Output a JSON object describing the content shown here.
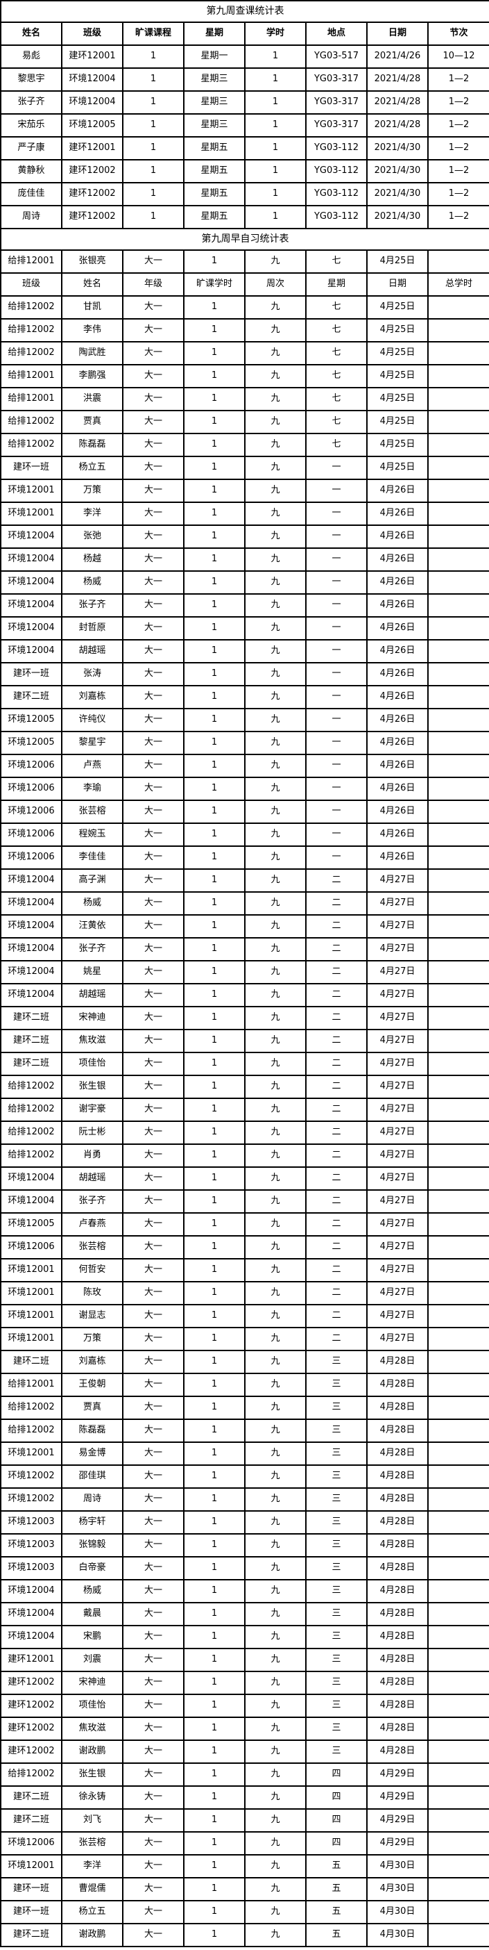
{
  "colors": {
    "border": "#000000",
    "background": "#ffffff",
    "text": "#000000"
  },
  "table1": {
    "title": "第九周查课统计表",
    "headers": [
      "姓名",
      "班级",
      "旷课课程",
      "星期",
      "学时",
      "地点",
      "日期",
      "节次"
    ],
    "rows": [
      [
        "易彪",
        "建环12001",
        "1",
        "星期一",
        "1",
        "YG03-517",
        "2021/4/26",
        "10—12"
      ],
      [
        "黎思宇",
        "环境12004",
        "1",
        "星期三",
        "1",
        "YG03-317",
        "2021/4/28",
        "1—2"
      ],
      [
        "张子齐",
        "环境12004",
        "1",
        "星期三",
        "1",
        "YG03-317",
        "2021/4/28",
        "1—2"
      ],
      [
        "宋茄乐",
        "环境12005",
        "1",
        "星期三",
        "1",
        "YG03-317",
        "2021/4/28",
        "1—2"
      ],
      [
        "严子康",
        "建环12001",
        "1",
        "星期五",
        "1",
        "YG03-112",
        "2021/4/30",
        "1—2"
      ],
      [
        "黄静秋",
        "建环12002",
        "1",
        "星期五",
        "1",
        "YG03-112",
        "2021/4/30",
        "1—2"
      ],
      [
        "庞佳佳",
        "建环12002",
        "1",
        "星期五",
        "1",
        "YG03-112",
        "2021/4/30",
        "1—2"
      ],
      [
        "周诗",
        "建环12002",
        "1",
        "星期五",
        "1",
        "YG03-112",
        "2021/4/30",
        "1—2"
      ]
    ]
  },
  "table2": {
    "title": "第九周早自习统计表",
    "pre_rows": [
      [
        "给排12001",
        "张银亮",
        "大一",
        "1",
        "九",
        "七",
        "4月25日",
        ""
      ]
    ],
    "headers": [
      "班级",
      "姓名",
      "年级",
      "旷课学时",
      "周次",
      "星期",
      "日期",
      "总学时"
    ],
    "rows": [
      [
        "给排12002",
        "甘凯",
        "大一",
        "1",
        "九",
        "七",
        "4月25日",
        ""
      ],
      [
        "给排12002",
        "李伟",
        "大一",
        "1",
        "九",
        "七",
        "4月25日",
        ""
      ],
      [
        "给排12002",
        "陶武胜",
        "大一",
        "1",
        "九",
        "七",
        "4月25日",
        ""
      ],
      [
        "给排12001",
        "李鹏强",
        "大一",
        "1",
        "九",
        "七",
        "4月25日",
        ""
      ],
      [
        "给排12001",
        "洪震",
        "大一",
        "1",
        "九",
        "七",
        "4月25日",
        ""
      ],
      [
        "给排12002",
        "贾真",
        "大一",
        "1",
        "九",
        "七",
        "4月25日",
        ""
      ],
      [
        "给排12002",
        "陈磊磊",
        "大一",
        "1",
        "九",
        "七",
        "4月25日",
        ""
      ],
      [
        "建环一班",
        "杨立五",
        "大一",
        "1",
        "九",
        "一",
        "4月25日",
        ""
      ],
      [
        "环境12001",
        "万策",
        "大一",
        "1",
        "九",
        "一",
        "4月26日",
        ""
      ],
      [
        "环境12001",
        "李洋",
        "大一",
        "1",
        "九",
        "一",
        "4月26日",
        ""
      ],
      [
        "环境12004",
        "张弛",
        "大一",
        "1",
        "九",
        "一",
        "4月26日",
        ""
      ],
      [
        "环境12004",
        "杨越",
        "大一",
        "1",
        "九",
        "一",
        "4月26日",
        ""
      ],
      [
        "环境12004",
        "杨威",
        "大一",
        "1",
        "九",
        "一",
        "4月26日",
        ""
      ],
      [
        "环境12004",
        "张子齐",
        "大一",
        "1",
        "九",
        "一",
        "4月26日",
        ""
      ],
      [
        "环境12004",
        "封哲原",
        "大一",
        "1",
        "九",
        "一",
        "4月26日",
        ""
      ],
      [
        "环境12004",
        "胡越瑶",
        "大一",
        "1",
        "九",
        "一",
        "4月26日",
        ""
      ],
      [
        "建环一班",
        "张涛",
        "大一",
        "1",
        "九",
        "一",
        "4月26日",
        ""
      ],
      [
        "建环二班",
        "刘嘉栋",
        "大一",
        "1",
        "九",
        "一",
        "4月26日",
        ""
      ],
      [
        "环境12005",
        "许纯仪",
        "大一",
        "1",
        "九",
        "一",
        "4月26日",
        ""
      ],
      [
        "环境12005",
        "黎星宇",
        "大一",
        "1",
        "九",
        "一",
        "4月26日",
        ""
      ],
      [
        "环境12006",
        "卢燕",
        "大一",
        "1",
        "九",
        "一",
        "4月26日",
        ""
      ],
      [
        "环境12006",
        "李瑜",
        "大一",
        "1",
        "九",
        "一",
        "4月26日",
        ""
      ],
      [
        "环境12006",
        "张芸榕",
        "大一",
        "1",
        "九",
        "一",
        "4月26日",
        ""
      ],
      [
        "环境12006",
        "程婉玉",
        "大一",
        "1",
        "九",
        "一",
        "4月26日",
        ""
      ],
      [
        "环境12006",
        "李佳佳",
        "大一",
        "1",
        "九",
        "一",
        "4月26日",
        ""
      ],
      [
        "环境12004",
        "高子渊",
        "大一",
        "1",
        "九",
        "二",
        "4月27日",
        ""
      ],
      [
        "环境12004",
        "杨威",
        "大一",
        "1",
        "九",
        "二",
        "4月27日",
        ""
      ],
      [
        "环境12004",
        "汪黄依",
        "大一",
        "1",
        "九",
        "二",
        "4月27日",
        ""
      ],
      [
        "环境12004",
        "张子齐",
        "大一",
        "1",
        "九",
        "二",
        "4月27日",
        ""
      ],
      [
        "环境12004",
        "姚星",
        "大一",
        "1",
        "九",
        "二",
        "4月27日",
        ""
      ],
      [
        "环境12004",
        "胡越瑶",
        "大一",
        "1",
        "九",
        "二",
        "4月27日",
        ""
      ],
      [
        "建环二班",
        "宋神迪",
        "大一",
        "1",
        "九",
        "二",
        "4月27日",
        ""
      ],
      [
        "建环二班",
        "焦玫滋",
        "大一",
        "1",
        "九",
        "二",
        "4月27日",
        ""
      ],
      [
        "建环二班",
        "项佳怡",
        "大一",
        "1",
        "九",
        "二",
        "4月27日",
        ""
      ],
      [
        "给排12002",
        "张生银",
        "大一",
        "1",
        "九",
        "二",
        "4月27日",
        ""
      ],
      [
        "给排12002",
        "谢宇豪",
        "大一",
        "1",
        "九",
        "二",
        "4月27日",
        ""
      ],
      [
        "给排12002",
        "阮士彬",
        "大一",
        "1",
        "九",
        "二",
        "4月27日",
        ""
      ],
      [
        "给排12002",
        "肖勇",
        "大一",
        "1",
        "九",
        "二",
        "4月27日",
        ""
      ],
      [
        "环境12004",
        "胡越瑶",
        "大一",
        "1",
        "九",
        "二",
        "4月27日",
        ""
      ],
      [
        "环境12004",
        "张子齐",
        "大一",
        "1",
        "九",
        "二",
        "4月27日",
        ""
      ],
      [
        "环境12005",
        "卢春燕",
        "大一",
        "1",
        "九",
        "二",
        "4月27日",
        ""
      ],
      [
        "环境12006",
        "张芸榕",
        "大一",
        "1",
        "九",
        "二",
        "4月27日",
        ""
      ],
      [
        "环境12001",
        "何哲安",
        "大一",
        "1",
        "九",
        "二",
        "4月27日",
        ""
      ],
      [
        "环境12001",
        "陈玫",
        "大一",
        "1",
        "九",
        "二",
        "4月27日",
        ""
      ],
      [
        "环境12001",
        "谢显志",
        "大一",
        "1",
        "九",
        "二",
        "4月27日",
        ""
      ],
      [
        "环境12001",
        "万策",
        "大一",
        "1",
        "九",
        "二",
        "4月27日",
        ""
      ],
      [
        "建环二班",
        "刘嘉栋",
        "大一",
        "1",
        "九",
        "三",
        "4月28日",
        ""
      ],
      [
        "给排12001",
        "王俊朝",
        "大一",
        "1",
        "九",
        "三",
        "4月28日",
        ""
      ],
      [
        "给排12002",
        "贾真",
        "大一",
        "1",
        "九",
        "三",
        "4月28日",
        ""
      ],
      [
        "给排12002",
        "陈磊磊",
        "大一",
        "1",
        "九",
        "三",
        "4月28日",
        ""
      ],
      [
        "环境12001",
        "易金博",
        "大一",
        "1",
        "九",
        "三",
        "4月28日",
        ""
      ],
      [
        "环境12002",
        "邵佳琪",
        "大一",
        "1",
        "九",
        "三",
        "4月28日",
        ""
      ],
      [
        "环境12002",
        "周诗",
        "大一",
        "1",
        "九",
        "三",
        "4月28日",
        ""
      ],
      [
        "环境12003",
        "杨宇轩",
        "大一",
        "1",
        "九",
        "三",
        "4月28日",
        ""
      ],
      [
        "环境12003",
        "张锦毅",
        "大一",
        "1",
        "九",
        "三",
        "4月28日",
        ""
      ],
      [
        "环境12003",
        "白帝豪",
        "大一",
        "1",
        "九",
        "三",
        "4月28日",
        ""
      ],
      [
        "环境12004",
        "杨威",
        "大一",
        "1",
        "九",
        "三",
        "4月28日",
        ""
      ],
      [
        "环境12004",
        "戴晨",
        "大一",
        "1",
        "九",
        "三",
        "4月28日",
        ""
      ],
      [
        "环境12004",
        "宋鹏",
        "大一",
        "1",
        "九",
        "三",
        "4月28日",
        ""
      ],
      [
        "建环12001",
        "刘震",
        "大一",
        "1",
        "九",
        "三",
        "4月28日",
        ""
      ],
      [
        "建环12002",
        "宋神迪",
        "大一",
        "1",
        "九",
        "三",
        "4月28日",
        ""
      ],
      [
        "建环12002",
        "项佳怡",
        "大一",
        "1",
        "九",
        "三",
        "4月28日",
        ""
      ],
      [
        "建环12002",
        "焦玫滋",
        "大一",
        "1",
        "九",
        "三",
        "4月28日",
        ""
      ],
      [
        "建环12002",
        "谢政鹏",
        "大一",
        "1",
        "九",
        "三",
        "4月28日",
        ""
      ],
      [
        "给排12002",
        "张生银",
        "大一",
        "1",
        "九",
        "四",
        "4月29日",
        ""
      ],
      [
        "建环二班",
        "徐永铸",
        "大一",
        "1",
        "九",
        "四",
        "4月29日",
        ""
      ],
      [
        "建环二班",
        "刘飞",
        "大一",
        "1",
        "九",
        "四",
        "4月29日",
        ""
      ],
      [
        "环境12006",
        "张芸榕",
        "大一",
        "1",
        "九",
        "四",
        "4月29日",
        ""
      ],
      [
        "环境12001",
        "李洋",
        "大一",
        "1",
        "九",
        "五",
        "4月30日",
        ""
      ],
      [
        "建环一班",
        "曹焜儒",
        "大一",
        "1",
        "九",
        "五",
        "4月30日",
        ""
      ],
      [
        "建环一班",
        "杨立五",
        "大一",
        "1",
        "九",
        "五",
        "4月30日",
        ""
      ],
      [
        "建环二班",
        "谢政鹏",
        "大一",
        "1",
        "九",
        "五",
        "4月30日",
        ""
      ]
    ]
  }
}
